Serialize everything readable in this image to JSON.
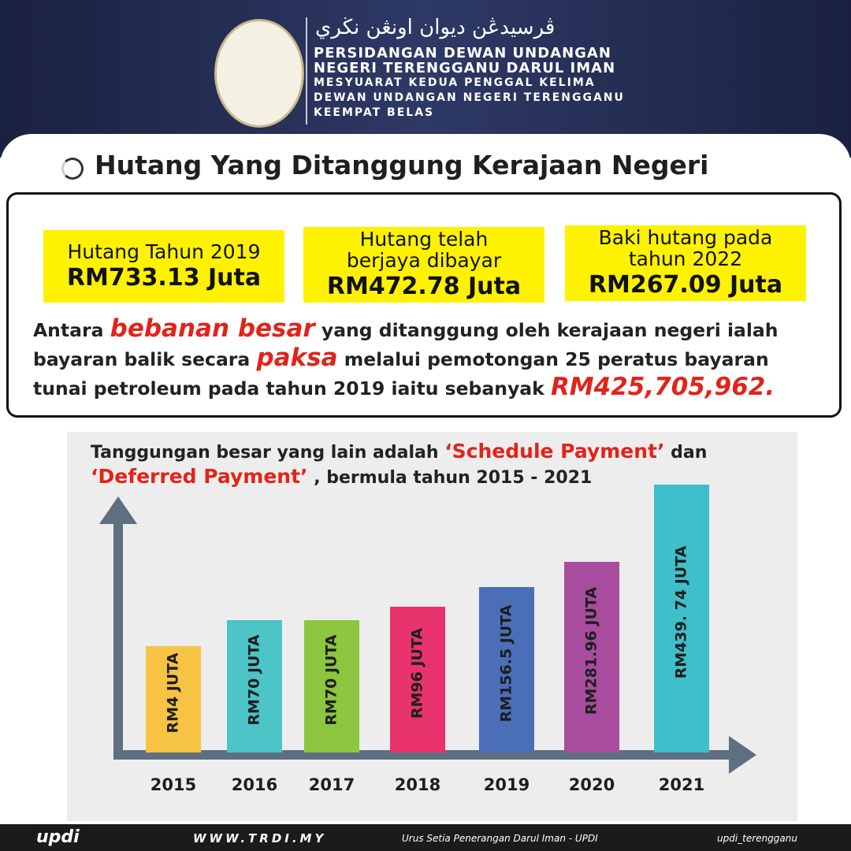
{
  "header": {
    "jawi": "ڤرسيدڠن ديوان اونڠن نڬري",
    "lines": [
      "PERSIDANGAN DEWAN UNDANGAN",
      "NEGERI TERENGGANU DARUL IMAN",
      "MESYUARAT KEDUA PENGGAL KELIMA",
      "DEWAN UNDANGAN NEGERI TERENGGANU",
      "KEEMPAT BELAS"
    ]
  },
  "section_title": "Hutang Yang Ditanggung Kerajaan Negeri",
  "cards": [
    {
      "label": [
        "Hutang Tahun 2019"
      ],
      "amount": "RM733.13 Juta"
    },
    {
      "label": [
        "Hutang telah",
        "berjaya dibayar"
      ],
      "amount": "RM472.78 Juta"
    },
    {
      "label": [
        "Baki hutang pada",
        "tahun 2022"
      ],
      "amount": "RM267.09 Juta"
    }
  ],
  "paragraph": [
    {
      "text": "Antara ",
      "emphasis": false
    },
    {
      "text": "bebanan besar",
      "emphasis": true
    },
    {
      "text": " yang ditanggung oleh kerajaan negeri ialah bayaran balik secara ",
      "emphasis": false
    },
    {
      "text": "paksa",
      "emphasis": true
    },
    {
      "text": " melalui pemotongan 25 peratus bayaran tunai petroleum pada tahun 2019 iaitu sebanyak ",
      "emphasis": false
    },
    {
      "text": "RM425,705,962.",
      "emphasis": true
    }
  ],
  "chart_heading": [
    {
      "text": "Tanggungan besar yang lain adalah ",
      "emphasis": false
    },
    {
      "text": "‘Schedule Payment’",
      "emphasis": true
    },
    {
      "text": " dan ",
      "emphasis": false
    },
    {
      "text": "‘Deferred Payment’",
      "emphasis": true
    },
    {
      "text": " , bermula tahun 2015 - 2021",
      "emphasis": false
    }
  ],
  "bars": [
    {
      "year": "2015",
      "label": "RM4 JUTA",
      "color": "#f7c342"
    },
    {
      "year": "2016",
      "label": "RM70 JUTA",
      "color": "#4cc4c8"
    },
    {
      "year": "2017",
      "label": "RM70 JUTA",
      "color": "#8dc63f"
    },
    {
      "year": "2018",
      "label": "RM96 JUTA",
      "color": "#e8336d"
    },
    {
      "year": "2019",
      "label": "RM156.5 JUTA",
      "color": "#4a6fb8"
    },
    {
      "year": "2020",
      "label": "RM281.96 JUTA",
      "color": "#a84c9e"
    },
    {
      "year": "2021",
      "label": "RM439. 74 JUTA",
      "color": "#3fbfcb"
    }
  ],
  "footer": {
    "logo": "updi",
    "site": "WWW.TRDI.MY",
    "facebook": "Urus Setia Penerangan Darul Iman - UPDI",
    "social": "updi_terengganu"
  }
}
